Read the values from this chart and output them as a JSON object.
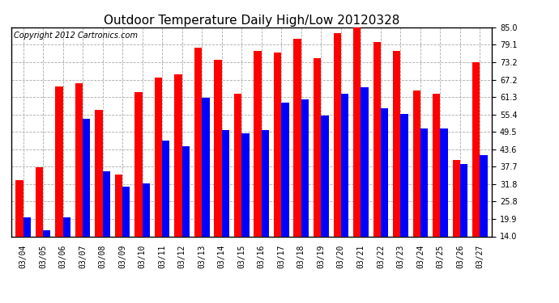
{
  "title": "Outdoor Temperature Daily High/Low 20120328",
  "copyright": "Copyright 2012 Cartronics.com",
  "dates": [
    "03/04",
    "03/05",
    "03/06",
    "03/07",
    "03/08",
    "03/09",
    "03/10",
    "03/11",
    "03/12",
    "03/13",
    "03/14",
    "03/15",
    "03/16",
    "03/17",
    "03/18",
    "03/19",
    "03/20",
    "03/21",
    "03/22",
    "03/23",
    "03/24",
    "03/25",
    "03/26",
    "03/27"
  ],
  "highs": [
    33.0,
    37.5,
    65.0,
    66.0,
    57.0,
    35.0,
    63.0,
    68.0,
    69.0,
    78.0,
    74.0,
    62.5,
    77.0,
    76.5,
    81.0,
    74.5,
    83.0,
    85.0,
    80.0,
    77.0,
    63.5,
    62.5,
    40.0,
    73.0
  ],
  "lows": [
    20.5,
    16.0,
    20.5,
    54.0,
    36.0,
    31.0,
    32.0,
    46.5,
    44.5,
    61.0,
    50.0,
    49.0,
    50.0,
    59.5,
    60.5,
    55.0,
    62.5,
    64.5,
    57.5,
    55.5,
    50.5,
    50.5,
    38.5,
    41.5
  ],
  "high_color": "#ff0000",
  "low_color": "#0000ff",
  "bar_width": 0.38,
  "ylim": [
    14.0,
    85.0
  ],
  "yticks": [
    14.0,
    19.9,
    25.8,
    31.8,
    37.7,
    43.6,
    49.5,
    55.4,
    61.3,
    67.2,
    73.2,
    79.1,
    85.0
  ],
  "background_color": "#ffffff",
  "grid_color": "#aaaaaa",
  "title_fontsize": 11,
  "tick_fontsize": 7,
  "copyright_fontsize": 7
}
